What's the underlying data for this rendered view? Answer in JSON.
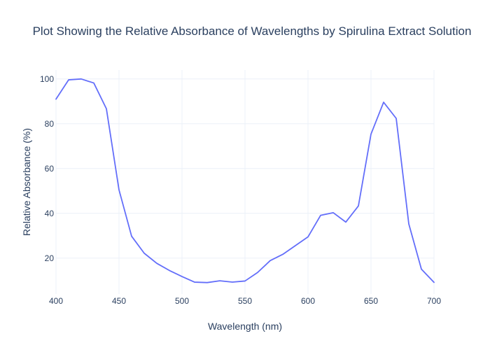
{
  "chart_data": {
    "type": "line",
    "title": "Plot Showing the Relative Absorbance of Wavelengths by Spirulina Extract Solution",
    "xlabel": "Wavelength (nm)",
    "ylabel": "Relative Absorbance (%)",
    "xlim": [
      400,
      700
    ],
    "ylim": [
      4,
      104
    ],
    "x_ticks": [
      400,
      450,
      500,
      550,
      600,
      650,
      700
    ],
    "y_ticks": [
      20,
      40,
      60,
      80,
      100
    ],
    "grid": true,
    "legend": false,
    "series": [
      {
        "color": "#636efa",
        "x": [
          400,
          410,
          420,
          430,
          440,
          450,
          460,
          470,
          480,
          490,
          500,
          510,
          520,
          530,
          540,
          550,
          560,
          570,
          580,
          590,
          600,
          610,
          620,
          630,
          640,
          650,
          660,
          670,
          680,
          690,
          700
        ],
        "y": [
          91,
          99.6,
          100,
          98.2,
          86.7,
          50.5,
          29.8,
          22.2,
          17.7,
          14.5,
          11.8,
          9.3,
          9.1,
          9.9,
          9.3,
          9.8,
          13.6,
          18.9,
          21.7,
          25.6,
          29.5,
          39.1,
          40.3,
          36.1,
          43.3,
          75.4,
          89.6,
          82.4,
          35.3,
          15.1,
          9.2
        ]
      }
    ]
  }
}
